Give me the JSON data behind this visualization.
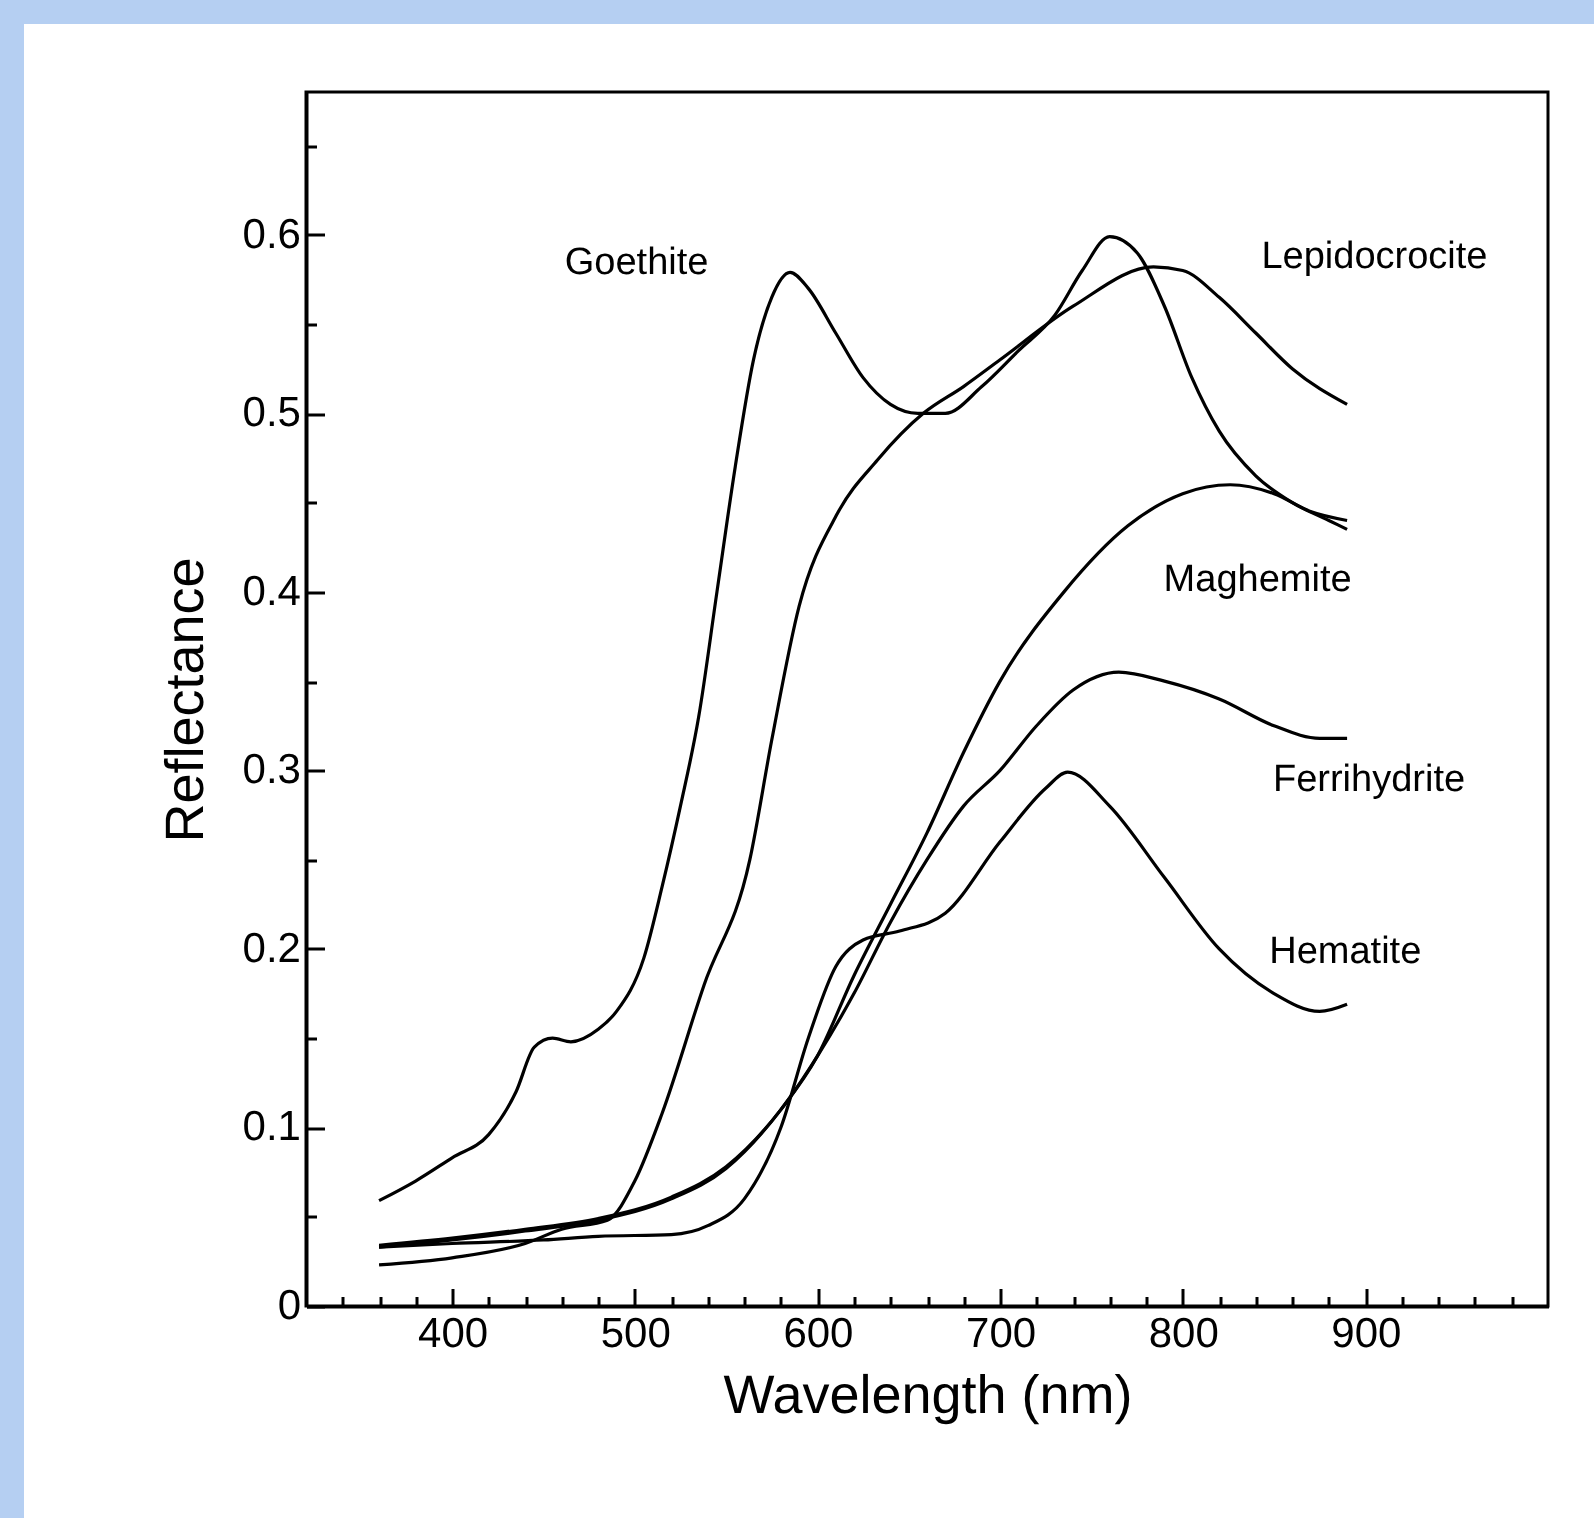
{
  "chart_data": {
    "type": "line",
    "xlabel": "Wavelength (nm)",
    "ylabel": "Reflectance",
    "legend": false,
    "xlim": [
      320,
      1000
    ],
    "ylim": [
      0,
      0.68
    ],
    "xticks": [
      {
        "value": 340,
        "label": null
      },
      {
        "value": 360,
        "label": null
      },
      {
        "value": 380,
        "label": null
      },
      400,
      {
        "value": 420,
        "label": null
      },
      {
        "value": 440,
        "label": null
      },
      {
        "value": 460,
        "label": null
      },
      {
        "value": 480,
        "label": null
      },
      500,
      {
        "value": 520,
        "label": null
      },
      {
        "value": 540,
        "label": null
      },
      {
        "value": 560,
        "label": null
      },
      {
        "value": 580,
        "label": null
      },
      600,
      {
        "value": 620,
        "label": null
      },
      {
        "value": 640,
        "label": null
      },
      {
        "value": 660,
        "label": null
      },
      {
        "value": 680,
        "label": null
      },
      700,
      {
        "value": 720,
        "label": null
      },
      {
        "value": 740,
        "label": null
      },
      {
        "value": 760,
        "label": null
      },
      {
        "value": 780,
        "label": null
      },
      800,
      {
        "value": 820,
        "label": null
      },
      {
        "value": 840,
        "label": null
      },
      {
        "value": 860,
        "label": null
      },
      {
        "value": 880,
        "label": null
      },
      900,
      {
        "value": 920,
        "label": null
      },
      {
        "value": 940,
        "label": null
      },
      {
        "value": 960,
        "label": null
      },
      {
        "value": 980,
        "label": null
      }
    ],
    "yticks": [
      0,
      {
        "value": 0.05,
        "label": null
      },
      0.1,
      {
        "value": 0.15,
        "label": null
      },
      0.2,
      {
        "value": 0.25,
        "label": null
      },
      0.3,
      {
        "value": 0.35,
        "label": null
      },
      0.4,
      {
        "value": 0.45,
        "label": null
      },
      0.5,
      {
        "value": 0.55,
        "label": null
      },
      0.6,
      {
        "value": 0.65,
        "label": null
      }
    ],
    "series": [
      {
        "name": "Goethite",
        "color": "#000000",
        "x": [
          360,
          380,
          400,
          420,
          435,
          445,
          455,
          465,
          480,
          490,
          505,
          515,
          525,
          535,
          545,
          555,
          565,
          575,
          585,
          595,
          610,
          625,
          640,
          655,
          670,
          690,
          710,
          730,
          745,
          760,
          775,
          790,
          805,
          820,
          840,
          860,
          880,
          890
        ],
        "values": [
          0.059,
          0.07,
          0.083,
          0.096,
          0.12,
          0.145,
          0.15,
          0.148,
          0.155,
          0.165,
          0.195,
          0.235,
          0.28,
          0.33,
          0.4,
          0.47,
          0.53,
          0.565,
          0.579,
          0.57,
          0.545,
          0.52,
          0.505,
          0.5,
          0.5,
          0.515,
          0.535,
          0.555,
          0.58,
          0.599,
          0.59,
          0.56,
          0.52,
          0.49,
          0.465,
          0.45,
          0.44,
          0.435
        ]
      },
      {
        "name": "Lepidocrocite",
        "color": "#000000",
        "x": [
          360,
          400,
          440,
          460,
          485,
          500,
          515,
          538,
          563,
          575,
          590,
          611,
          633,
          658,
          680,
          700,
          740,
          784,
          800,
          820,
          840,
          860,
          890
        ],
        "values": [
          0.023,
          0.027,
          0.035,
          0.043,
          0.048,
          0.07,
          0.108,
          0.18,
          0.25,
          0.317,
          0.392,
          0.444,
          0.474,
          0.5,
          0.515,
          0.53,
          0.56,
          0.582,
          0.58,
          0.565,
          0.545,
          0.525,
          0.505
        ]
      },
      {
        "name": "Maghemite",
        "color": "#000000",
        "x": [
          360,
          400,
          440,
          480,
          520,
          550,
          580,
          600,
          620,
          640,
          660,
          680,
          700,
          735,
          770,
          800,
          826,
          850,
          870,
          890
        ],
        "values": [
          0.033,
          0.037,
          0.042,
          0.048,
          0.06,
          0.077,
          0.11,
          0.14,
          0.185,
          0.225,
          0.265,
          0.31,
          0.35,
          0.4,
          0.437,
          0.455,
          0.46,
          0.455,
          0.445,
          0.44
        ]
      },
      {
        "name": "Ferrihydrite",
        "color": "#000000",
        "x": [
          360,
          400,
          440,
          480,
          520,
          550,
          580,
          600,
          620,
          640,
          660,
          680,
          700,
          720,
          740,
          765,
          790,
          820,
          850,
          875,
          890
        ],
        "values": [
          0.034,
          0.038,
          0.043,
          0.049,
          0.061,
          0.078,
          0.11,
          0.14,
          0.175,
          0.215,
          0.25,
          0.28,
          0.3,
          0.325,
          0.345,
          0.355,
          0.35,
          0.34,
          0.325,
          0.318,
          0.318
        ]
      },
      {
        "name": "Hematite",
        "color": "#000000",
        "x": [
          360,
          400,
          450,
          480,
          520,
          540,
          560,
          580,
          595,
          610,
          625,
          645,
          670,
          700,
          725,
          737,
          760,
          790,
          820,
          850,
          875,
          890
        ],
        "values": [
          0.033,
          0.035,
          0.037,
          0.039,
          0.04,
          0.045,
          0.06,
          0.1,
          0.15,
          0.19,
          0.205,
          0.21,
          0.22,
          0.26,
          0.29,
          0.299,
          0.28,
          0.24,
          0.2,
          0.175,
          0.165,
          0.169
        ]
      }
    ]
  }
}
